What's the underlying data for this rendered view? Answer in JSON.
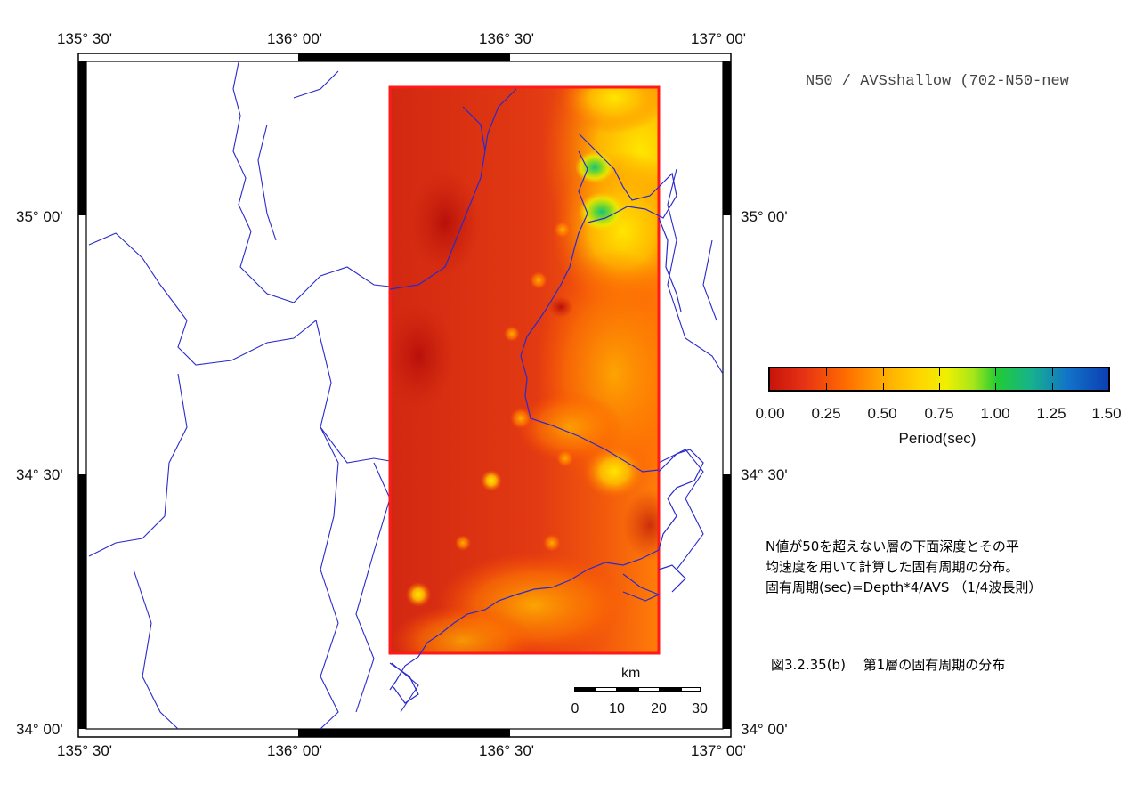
{
  "map": {
    "lon_ticks": [
      "135° 30'",
      "136° 00'",
      "136° 30'",
      "137° 00'"
    ],
    "lat_ticks": [
      "35° 00'",
      "34° 30'",
      "34° 00'"
    ],
    "dataset_label": "N50 / AVSshallow (702-N50-new"
  },
  "colorbar": {
    "tick_labels": [
      "0.00",
      "0.25",
      "0.50",
      "0.75",
      "1.00",
      "1.25",
      "1.50"
    ],
    "title": "Period(sec)",
    "colors": [
      "#c8140a",
      "#ff6a00",
      "#ffd500",
      "#f0f000",
      "#22cc33",
      "#1273c8",
      "#0c3fb4"
    ]
  },
  "description": [
    "N値が50を超えない層の下面深度とその平",
    "均速度を用いて計算した固有周期の分布。",
    "固有周期(sec)=Depth*4/AVS （1/4波長則）"
  ],
  "figure_caption": "図3.2.35(b)　 第1層の固有周期の分布",
  "scalebar": {
    "unit": "km",
    "labels": [
      "0",
      "10",
      "20",
      "30"
    ]
  }
}
